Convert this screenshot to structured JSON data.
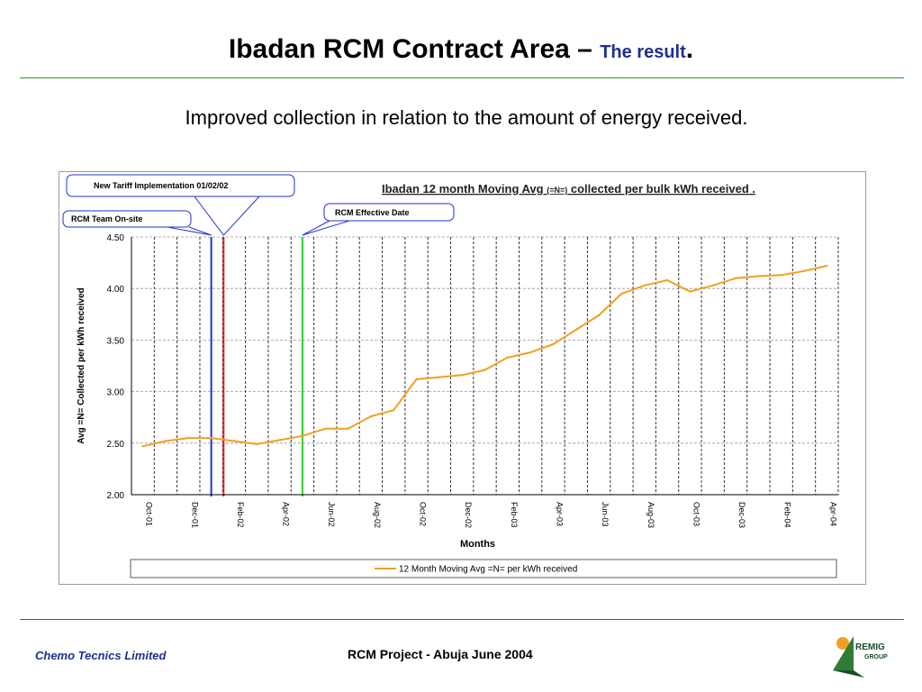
{
  "slide": {
    "title_main": "Ibadan RCM Contract Area – ",
    "title_accent": "The result",
    "title_end": ".",
    "subtitle": "Improved collection in relation to the amount of energy received.",
    "footer_left": "Chemo Tecnics Limited",
    "footer_center": "RCM Project - Abuja June 2004",
    "logo_text": "REMIG",
    "logo_sub": "GROUP"
  },
  "colors": {
    "series": "#f0a020",
    "marker_blue": "#2233cc",
    "marker_red": "#dd2222",
    "marker_green": "#33cc33",
    "callout_border": "#2233cc",
    "title_accent": "#1f2f8f"
  },
  "chart_data": {
    "type": "line",
    "title": "Ibadan 12 month Moving Avg",
    "title_unit": "(=N=)",
    "title_rest": "collected per bulk kWh received .",
    "xlabel": "Months",
    "ylabel": "Avg =N= Collected per kWh received",
    "ylim": [
      2.0,
      4.5
    ],
    "yticks": [
      "4.50",
      "4.00",
      "3.50",
      "3.00",
      "2.50",
      "2.00"
    ],
    "ytick_values": [
      4.5,
      4.0,
      3.5,
      3.0,
      2.5,
      2.0
    ],
    "categories": [
      "Oct-01",
      "Nov-01",
      "Dec-01",
      "Jan-02",
      "Feb-02",
      "Mar-02",
      "Apr-02",
      "May-02",
      "Jun-02",
      "Jul-02",
      "Aug-02",
      "Sep-02",
      "Oct-02",
      "Nov-02",
      "Dec-02",
      "Jan-03",
      "Feb-03",
      "Mar-03",
      "Apr-03",
      "May-03",
      "Jun-03",
      "Jul-03",
      "Aug-03",
      "Sep-03",
      "Oct-03",
      "Nov-03",
      "Dec-03",
      "Jan-04",
      "Feb-04",
      "Mar-04",
      "Apr-04"
    ],
    "tick_labels": [
      "Oct-01",
      "Dec-01",
      "Feb-02",
      "Apr-02",
      "Jun-02",
      "Aug-02",
      "Oct-02",
      "Dec-02",
      "Feb-03",
      "Apr-03",
      "Jun-03",
      "Aug-03",
      "Oct-03",
      "Dec-03",
      "Feb-04",
      "Apr-04"
    ],
    "series": [
      {
        "name": "12 Month Moving  Avg =N= per kWh received",
        "values": [
          2.47,
          2.52,
          2.55,
          2.55,
          2.52,
          2.49,
          2.53,
          2.57,
          2.64,
          2.64,
          2.76,
          2.82,
          3.12,
          3.14,
          3.16,
          3.21,
          3.33,
          3.38,
          3.46,
          3.6,
          3.74,
          3.95,
          4.03,
          4.08,
          3.97,
          4.03,
          4.1,
          4.12,
          4.13,
          4.17,
          4.22
        ]
      }
    ],
    "vertical_markers": [
      {
        "label": "RCM  Team On-site",
        "position_month": "Jan-02",
        "color": "#2233cc"
      },
      {
        "label": "New Tariff Implementation 01/02/02",
        "position_month": "Feb-02",
        "color": "#dd2222"
      },
      {
        "label": "RCM  Effective Date",
        "position_month": "May-02",
        "color": "#33cc33"
      }
    ],
    "grid": "vertical and horizontal dashed",
    "legend_placement": "bottom"
  }
}
